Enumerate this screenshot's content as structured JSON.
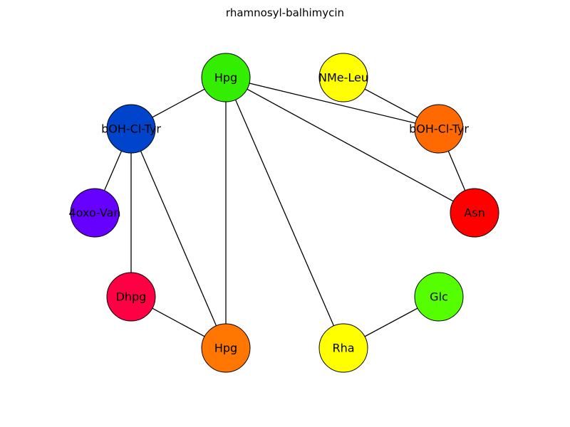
{
  "title": "rhamnosyl-balhimycin",
  "nodes": [
    {
      "id": "n0",
      "label": "Hpg",
      "color": "#33ee00"
    },
    {
      "id": "n1",
      "label": "NMe-Leu",
      "color": "#ffff00"
    },
    {
      "id": "n2",
      "label": "bOH-Cl-Tyr",
      "color": "#ff6a00"
    },
    {
      "id": "n3",
      "label": "Asn",
      "color": "#ff0000"
    },
    {
      "id": "n4",
      "label": "Glc",
      "color": "#55ff00"
    },
    {
      "id": "n5",
      "label": "Rha",
      "color": "#ffff00"
    },
    {
      "id": "n6",
      "label": "Hpg",
      "color": "#ff7700"
    },
    {
      "id": "n7",
      "label": "Dhpg",
      "color": "#ff0044"
    },
    {
      "id": "n8",
      "label": "4oxo-Van",
      "color": "#6600ff"
    },
    {
      "id": "n9",
      "label": "bOH-Cl-Tyr",
      "color": "#0044cc"
    }
  ],
  "edges": [
    [
      "n0",
      "n9"
    ],
    [
      "n0",
      "n2"
    ],
    [
      "n0",
      "n3"
    ],
    [
      "n0",
      "n6"
    ],
    [
      "n0",
      "n5"
    ],
    [
      "n1",
      "n2"
    ],
    [
      "n2",
      "n3"
    ],
    [
      "n4",
      "n5"
    ],
    [
      "n9",
      "n8"
    ],
    [
      "n9",
      "n7"
    ],
    [
      "n9",
      "n6"
    ],
    [
      "n7",
      "n6"
    ]
  ]
}
